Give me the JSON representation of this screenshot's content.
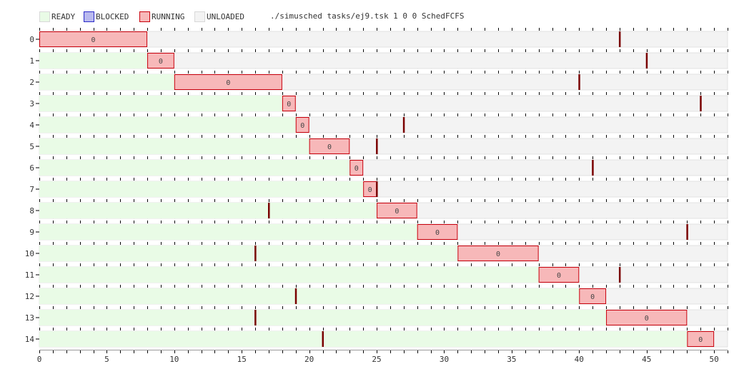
{
  "legend": {
    "items": [
      {
        "label": "READY",
        "state": "ready"
      },
      {
        "label": "BLOCKED",
        "state": "blocked"
      },
      {
        "label": "RUNNING",
        "state": "running"
      },
      {
        "label": "UNLOADED",
        "state": "unloaded"
      }
    ]
  },
  "title": "./simusched tasks/ej9.tsk 1 0 0 SchedFCFS",
  "colors": {
    "ready": "#e9fbe6",
    "blocked": "#b9b9ee",
    "running": "#f7b8b9",
    "running_border": "#c9000c",
    "unloaded": "#f3f3f3",
    "marker": "#7a0000",
    "tick": "#000000",
    "axis_text": "#333333"
  },
  "chart_data": {
    "type": "gantt",
    "title": "./simusched tasks/ej9.tsk 1 0 0 SchedFCFS",
    "xlim": [
      0,
      51
    ],
    "xticks": [
      0,
      5,
      10,
      15,
      20,
      25,
      30,
      35,
      40,
      45,
      50
    ],
    "tasks": [
      {
        "id": 0,
        "ready": [
          0,
          0
        ],
        "running": [
          0,
          8
        ],
        "core_label": "0",
        "marker": 43
      },
      {
        "id": 1,
        "ready": [
          0,
          8
        ],
        "running": [
          8,
          10
        ],
        "core_label": "0",
        "marker": 45
      },
      {
        "id": 2,
        "ready": [
          0,
          10
        ],
        "running": [
          10,
          18
        ],
        "core_label": "0",
        "marker": 40
      },
      {
        "id": 3,
        "ready": [
          0,
          18
        ],
        "running": [
          18,
          19
        ],
        "core_label": "0",
        "marker": 49
      },
      {
        "id": 4,
        "ready": [
          0,
          19
        ],
        "running": [
          19,
          20
        ],
        "core_label": "0",
        "marker": 27
      },
      {
        "id": 5,
        "ready": [
          0,
          20
        ],
        "running": [
          20,
          23
        ],
        "core_label": "0",
        "marker": 25
      },
      {
        "id": 6,
        "ready": [
          0,
          23
        ],
        "running": [
          23,
          24
        ],
        "core_label": "0",
        "marker": 41
      },
      {
        "id": 7,
        "ready": [
          0,
          24
        ],
        "running": [
          24,
          25
        ],
        "core_label": "0",
        "marker": 25
      },
      {
        "id": 8,
        "ready": [
          0,
          25
        ],
        "running": [
          25,
          28
        ],
        "core_label": "0",
        "marker": 17
      },
      {
        "id": 9,
        "ready": [
          0,
          28
        ],
        "running": [
          28,
          31
        ],
        "core_label": "0",
        "marker": 48
      },
      {
        "id": 10,
        "ready": [
          0,
          31
        ],
        "running": [
          31,
          37
        ],
        "core_label": "0",
        "marker": 16
      },
      {
        "id": 11,
        "ready": [
          0,
          37
        ],
        "running": [
          37,
          40
        ],
        "core_label": "0",
        "marker": 43
      },
      {
        "id": 12,
        "ready": [
          0,
          40
        ],
        "running": [
          40,
          42
        ],
        "core_label": "0",
        "marker": 19
      },
      {
        "id": 13,
        "ready": [
          0,
          42
        ],
        "running": [
          42,
          48
        ],
        "core_label": "0",
        "marker": 16
      },
      {
        "id": 14,
        "ready": [
          0,
          48
        ],
        "running": [
          48,
          50
        ],
        "core_label": "0",
        "marker": 21
      }
    ]
  }
}
